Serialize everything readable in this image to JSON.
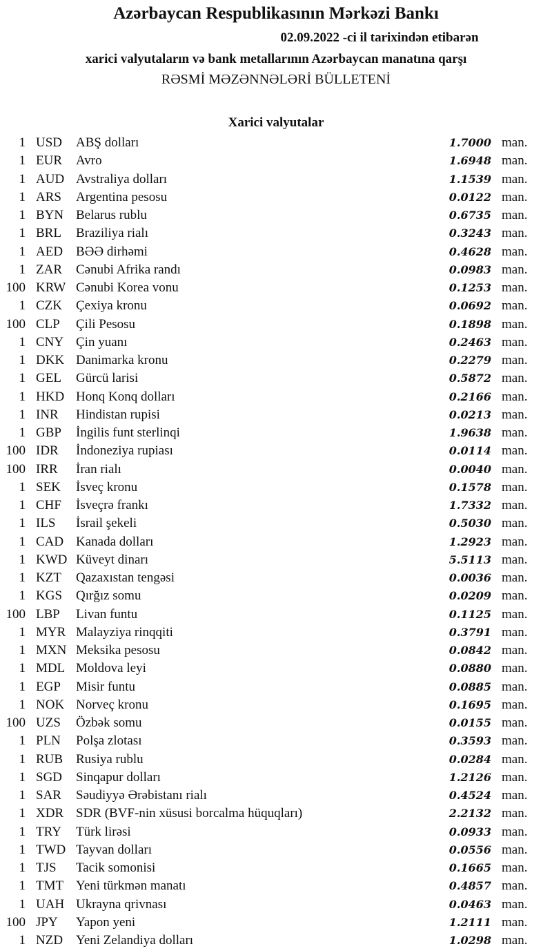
{
  "header": {
    "title": "Azərbaycan Respublikasının Mərkəzi Bankı",
    "date_line": "02.09.2022 -ci il tarixindən etibarən",
    "subtitle": "xarici valyutaların və bank metallarının Azərbaycan manatına qarşı",
    "bulletin": "RƏSMİ MƏZƏNNƏLƏRİ BÜLLETENİ",
    "section": "Xarici valyutalar"
  },
  "unit": "man.",
  "rates": [
    {
      "amount": "1",
      "code": "USD",
      "name": "ABŞ dolları",
      "value": "1.7000"
    },
    {
      "amount": "1",
      "code": "EUR",
      "name": "Avro",
      "value": "1.6948"
    },
    {
      "amount": "1",
      "code": "AUD",
      "name": "Avstraliya dolları",
      "value": "1.1539"
    },
    {
      "amount": "1",
      "code": "ARS",
      "name": "Argentina pesosu",
      "value": "0.0122"
    },
    {
      "amount": "1",
      "code": "BYN",
      "name": "Belarus rublu",
      "value": "0.6735"
    },
    {
      "amount": "1",
      "code": "BRL",
      "name": "Braziliya rialı",
      "value": "0.3243"
    },
    {
      "amount": "1",
      "code": "AED",
      "name": "BƏƏ dirhəmi",
      "value": "0.4628"
    },
    {
      "amount": "1",
      "code": "ZAR",
      "name": "Cənubi Afrika randı",
      "value": "0.0983"
    },
    {
      "amount": "100",
      "code": "KRW",
      "name": "Cənubi Korea vonu",
      "value": "0.1253"
    },
    {
      "amount": "1",
      "code": "CZK",
      "name": "Çexiya kronu",
      "value": "0.0692"
    },
    {
      "amount": "100",
      "code": "CLP",
      "name": "Çili Pesosu",
      "value": "0.1898"
    },
    {
      "amount": "1",
      "code": "CNY",
      "name": "Çin yuanı",
      "value": "0.2463"
    },
    {
      "amount": "1",
      "code": "DKK",
      "name": "Danimarka kronu",
      "value": "0.2279"
    },
    {
      "amount": "1",
      "code": "GEL",
      "name": "Gürcü larisi",
      "value": "0.5872"
    },
    {
      "amount": "1",
      "code": "HKD",
      "name": "Honq Konq dolları",
      "value": "0.2166"
    },
    {
      "amount": "1",
      "code": "INR",
      "name": "Hindistan rupisi",
      "value": "0.0213"
    },
    {
      "amount": "1",
      "code": "GBP",
      "name": "İngilis funt sterlinqi",
      "value": "1.9638"
    },
    {
      "amount": "100",
      "code": "IDR",
      "name": "İndoneziya rupiası",
      "value": "0.0114"
    },
    {
      "amount": "100",
      "code": "IRR",
      "name": "İran rialı",
      "value": "0.0040"
    },
    {
      "amount": "1",
      "code": "SEK",
      "name": "İsveç kronu",
      "value": "0.1578"
    },
    {
      "amount": "1",
      "code": "CHF",
      "name": "İsveçrə frankı",
      "value": "1.7332"
    },
    {
      "amount": "1",
      "code": "ILS",
      "name": "İsrail şekeli",
      "value": "0.5030"
    },
    {
      "amount": "1",
      "code": "CAD",
      "name": "Kanada dolları",
      "value": "1.2923"
    },
    {
      "amount": "1",
      "code": "KWD",
      "name": "Küveyt dinarı",
      "value": "5.5113"
    },
    {
      "amount": "1",
      "code": "KZT",
      "name": "Qazaxıstan tengəsi",
      "value": "0.0036"
    },
    {
      "amount": "1",
      "code": "KGS",
      "name": "Qırğız somu",
      "value": "0.0209"
    },
    {
      "amount": "100",
      "code": "LBP",
      "name": "Livan funtu",
      "value": "0.1125"
    },
    {
      "amount": "1",
      "code": "MYR",
      "name": "Malayziya rinqqiti",
      "value": "0.3791"
    },
    {
      "amount": "1",
      "code": "MXN",
      "name": "Meksika pesosu",
      "value": "0.0842"
    },
    {
      "amount": "1",
      "code": "MDL",
      "name": "Moldova leyi",
      "value": "0.0880"
    },
    {
      "amount": "1",
      "code": "EGP",
      "name": "Misir funtu",
      "value": "0.0885"
    },
    {
      "amount": "1",
      "code": "NOK",
      "name": "Norveç kronu",
      "value": "0.1695"
    },
    {
      "amount": "100",
      "code": "UZS",
      "name": "Özbək somu",
      "value": "0.0155"
    },
    {
      "amount": "1",
      "code": "PLN",
      "name": "Polşa zlotası",
      "value": "0.3593"
    },
    {
      "amount": "1",
      "code": "RUB",
      "name": "Rusiya rublu",
      "value": "0.0284"
    },
    {
      "amount": "1",
      "code": "SGD",
      "name": "Sinqapur dolları",
      "value": "1.2126"
    },
    {
      "amount": "1",
      "code": "SAR",
      "name": "Səudiyyə Ərəbistanı rialı",
      "value": "0.4524"
    },
    {
      "amount": "1",
      "code": "XDR",
      "name": "SDR (BVF-nin xüsusi borcalma hüquqları)",
      "value": "2.2132"
    },
    {
      "amount": "1",
      "code": "TRY",
      "name": "Türk lirəsi",
      "value": "0.0933"
    },
    {
      "amount": "1",
      "code": "TWD",
      "name": "Tayvan dolları",
      "value": "0.0556"
    },
    {
      "amount": "1",
      "code": "TJS",
      "name": "Tacik somonisi",
      "value": "0.1665"
    },
    {
      "amount": "1",
      "code": "TMT",
      "name": "Yeni türkmən manatı",
      "value": "0.4857"
    },
    {
      "amount": "1",
      "code": "UAH",
      "name": "Ukrayna qrivnası",
      "value": "0.0463"
    },
    {
      "amount": "100",
      "code": "JPY",
      "name": "Yapon yeni",
      "value": "1.2111"
    },
    {
      "amount": "1",
      "code": "NZD",
      "name": "Yeni Zelandiya dolları",
      "value": "1.0298"
    }
  ]
}
